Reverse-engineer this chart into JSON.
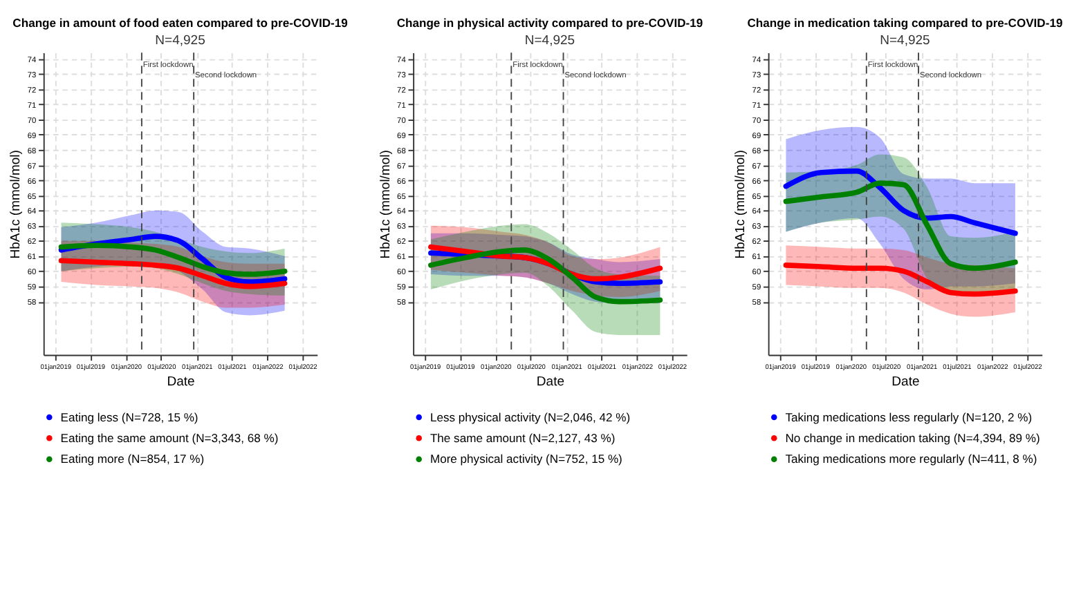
{
  "chart_data": [
    {
      "type": "line",
      "title": "Change in amount of food eaten compared to pre-COVID-19",
      "subtitle": "N=4,925",
      "xlabel": "Date",
      "ylabel": "HbA1c (mmol/mol)",
      "grid": true,
      "legend": "bottom",
      "line_style": "solid",
      "xlim": [
        "2018-11-01",
        "2022-09-15"
      ],
      "ylim": [
        54.5,
        74.4
      ],
      "xticks": [
        {
          "value": "2019-01-01",
          "label": "01jan2019"
        },
        {
          "value": "2019-07-01",
          "label": "01jul2019"
        },
        {
          "value": "2020-01-01",
          "label": "01jan2020"
        },
        {
          "value": "2020-07-01",
          "label": "01jul2020"
        },
        {
          "value": "2021-01-01",
          "label": "01jan2021"
        },
        {
          "value": "2021-07-01",
          "label": "01jul2021"
        },
        {
          "value": "2022-01-01",
          "label": "01jan2022"
        },
        {
          "value": "2022-07-01",
          "label": "01jul2022"
        }
      ],
      "yticks": [
        58,
        59,
        60,
        61,
        62,
        63,
        64,
        65,
        66,
        67,
        68,
        69,
        70,
        71,
        72,
        73,
        74
      ],
      "ref_lines": [
        {
          "axis": "x",
          "value": "2020-03-23",
          "label": "First lockdown",
          "line_style": "dashed"
        },
        {
          "axis": "x",
          "value": "2020-12-17",
          "label": "Second lockdown",
          "line_style": "dashed"
        }
      ],
      "series": [
        {
          "name": "Eating less (N=728, 15 %)",
          "color": "#0000ff",
          "x": [
            "2019-02-01",
            "2019-08-01",
            "2020-02-01",
            "2020-06-01",
            "2020-10-01",
            "2021-02-01",
            "2021-06-01",
            "2021-10-01",
            "2022-04-01"
          ],
          "values": [
            61.4,
            61.8,
            62.1,
            62.3,
            62.0,
            60.8,
            59.6,
            59.3,
            59.5
          ],
          "lower": [
            60.0,
            60.3,
            60.5,
            60.6,
            60.0,
            58.8,
            57.3,
            57.1,
            57.4
          ],
          "upper": [
            62.9,
            63.2,
            63.7,
            64.0,
            63.9,
            62.6,
            61.6,
            61.5,
            61.0
          ]
        },
        {
          "name": "Eating the same amount (N=3,343, 68 %)",
          "color": "#ff0000",
          "x": [
            "2019-02-01",
            "2019-08-01",
            "2020-02-01",
            "2020-06-01",
            "2020-10-01",
            "2021-02-01",
            "2021-06-01",
            "2021-10-01",
            "2022-04-01"
          ],
          "values": [
            60.7,
            60.6,
            60.5,
            60.4,
            60.2,
            59.7,
            59.2,
            59.0,
            59.2
          ],
          "lower": [
            59.3,
            59.1,
            59.0,
            58.9,
            58.6,
            58.0,
            57.6,
            57.6,
            57.8
          ],
          "upper": [
            62.0,
            62.0,
            61.9,
            61.8,
            61.6,
            61.0,
            60.6,
            60.5,
            60.5
          ]
        },
        {
          "name": "Eating more (N=854, 17 %)",
          "color": "#008000",
          "x": [
            "2019-02-01",
            "2019-08-01",
            "2020-02-01",
            "2020-06-01",
            "2020-10-01",
            "2021-02-01",
            "2021-06-01",
            "2021-10-01",
            "2022-04-01"
          ],
          "values": [
            61.6,
            61.7,
            61.6,
            61.4,
            60.9,
            60.3,
            59.9,
            59.8,
            60.0
          ],
          "lower": [
            60.0,
            60.2,
            60.3,
            60.2,
            59.8,
            59.2,
            58.7,
            58.5,
            58.4
          ],
          "upper": [
            63.2,
            63.1,
            62.9,
            62.6,
            62.1,
            61.6,
            61.3,
            61.2,
            61.5
          ]
        }
      ]
    },
    {
      "type": "line",
      "title": "Change in physical activity compared to pre-COVID-19",
      "subtitle": "N=4,925",
      "xlabel": "Date",
      "ylabel": "HbA1c (mmol/mol)",
      "grid": true,
      "legend": "bottom",
      "line_style": "solid",
      "xlim": [
        "2018-11-01",
        "2022-09-15"
      ],
      "ylim": [
        54.5,
        74.4
      ],
      "xticks": [
        {
          "value": "2019-01-01",
          "label": "01jan2019"
        },
        {
          "value": "2019-07-01",
          "label": "01jul2019"
        },
        {
          "value": "2020-01-01",
          "label": "01jan2020"
        },
        {
          "value": "2020-07-01",
          "label": "01jul2020"
        },
        {
          "value": "2021-01-01",
          "label": "01jan2021"
        },
        {
          "value": "2021-07-01",
          "label": "01jul2021"
        },
        {
          "value": "2022-01-01",
          "label": "01jan2022"
        },
        {
          "value": "2022-07-01",
          "label": "01jul2022"
        }
      ],
      "yticks": [
        58,
        59,
        60,
        61,
        62,
        63,
        64,
        65,
        66,
        67,
        68,
        69,
        70,
        71,
        72,
        73,
        74
      ],
      "ref_lines": [
        {
          "axis": "x",
          "value": "2020-03-23",
          "label": "First lockdown",
          "line_style": "dashed"
        },
        {
          "axis": "x",
          "value": "2020-12-17",
          "label": "Second lockdown",
          "line_style": "dashed"
        }
      ],
      "series": [
        {
          "name": "Less physical activity (N=2,046, 42 %)",
          "color": "#0000ff",
          "x": [
            "2019-02-01",
            "2019-08-01",
            "2020-02-01",
            "2020-06-01",
            "2020-10-01",
            "2021-02-01",
            "2021-06-01",
            "2021-10-01",
            "2022-05-01"
          ],
          "values": [
            61.2,
            61.1,
            61.0,
            60.9,
            60.5,
            59.8,
            59.3,
            59.2,
            59.3
          ],
          "lower": [
            59.8,
            59.7,
            59.7,
            59.6,
            59.2,
            58.5,
            58.0,
            57.9,
            57.9
          ],
          "upper": [
            62.5,
            62.5,
            62.4,
            62.3,
            61.9,
            61.1,
            60.8,
            60.6,
            60.8
          ]
        },
        {
          "name": "The same amount (N=2,127, 43 %)",
          "color": "#ff0000",
          "x": [
            "2019-02-01",
            "2019-08-01",
            "2020-02-01",
            "2020-06-01",
            "2020-10-01",
            "2021-02-01",
            "2021-06-01",
            "2021-10-01",
            "2022-05-01"
          ],
          "values": [
            61.6,
            61.3,
            61.0,
            60.9,
            60.5,
            59.8,
            59.5,
            59.6,
            60.2
          ],
          "lower": [
            60.1,
            59.9,
            59.7,
            59.6,
            59.2,
            58.7,
            58.4,
            58.3,
            58.7
          ],
          "upper": [
            63.0,
            62.9,
            62.6,
            62.4,
            61.9,
            61.0,
            60.8,
            60.9,
            61.6
          ]
        },
        {
          "name": "More physical activity (N=752, 15 %)",
          "color": "#008000",
          "x": [
            "2019-02-01",
            "2019-08-01",
            "2020-02-01",
            "2020-06-01",
            "2020-10-01",
            "2021-02-01",
            "2021-06-01",
            "2021-10-01",
            "2022-05-01"
          ],
          "values": [
            60.4,
            60.9,
            61.3,
            61.4,
            60.8,
            59.6,
            58.3,
            58.0,
            58.1
          ],
          "lower": [
            58.8,
            59.4,
            59.8,
            59.9,
            59.0,
            57.4,
            56.0,
            55.8,
            55.8
          ],
          "upper": [
            62.1,
            62.6,
            63.0,
            63.1,
            62.5,
            61.4,
            60.2,
            59.8,
            59.7
          ]
        }
      ]
    },
    {
      "type": "line",
      "title": "Change in medication taking compared to pre-COVID-19",
      "subtitle": "N=4,925",
      "xlabel": "Date",
      "ylabel": "HbA1c (mmol/mol)",
      "grid": true,
      "legend": "bottom",
      "line_style": "solid",
      "xlim": [
        "2018-11-01",
        "2022-09-15"
      ],
      "ylim": [
        54.5,
        74.4
      ],
      "xticks": [
        {
          "value": "2019-01-01",
          "label": "01jan2019"
        },
        {
          "value": "2019-07-01",
          "label": "01jul2019"
        },
        {
          "value": "2020-01-01",
          "label": "01jan2020"
        },
        {
          "value": "2020-07-01",
          "label": "01jul2020"
        },
        {
          "value": "2021-01-01",
          "label": "01jan2021"
        },
        {
          "value": "2021-07-01",
          "label": "01jul2021"
        },
        {
          "value": "2022-01-01",
          "label": "01jan2022"
        },
        {
          "value": "2022-07-01",
          "label": "01jul2022"
        }
      ],
      "yticks": [
        58,
        59,
        60,
        61,
        62,
        63,
        64,
        65,
        66,
        67,
        68,
        69,
        70,
        71,
        72,
        73,
        74
      ],
      "ref_lines": [
        {
          "axis": "x",
          "value": "2020-03-23",
          "label": "First lockdown",
          "line_style": "dashed"
        },
        {
          "axis": "x",
          "value": "2020-12-17",
          "label": "Second lockdown",
          "line_style": "dashed"
        }
      ],
      "series": [
        {
          "name": "Taking medications less regularly (N=120, 2 %)",
          "color": "#0000ff",
          "x": [
            "2019-02-01",
            "2019-08-01",
            "2020-02-01",
            "2020-06-01",
            "2020-10-01",
            "2021-02-01",
            "2021-06-01",
            "2021-10-01",
            "2022-05-01"
          ],
          "values": [
            65.6,
            66.5,
            66.6,
            65.5,
            64.0,
            63.5,
            63.6,
            63.2,
            62.5
          ],
          "lower": [
            62.6,
            63.2,
            63.5,
            61.8,
            59.5,
            58.8,
            59.0,
            59.0,
            59.2
          ],
          "upper": [
            68.7,
            69.3,
            69.5,
            68.8,
            66.4,
            66.1,
            66.1,
            65.8,
            65.8
          ]
        },
        {
          "name": "No change in medication taking (N=4,394, 89 %)",
          "color": "#ff0000",
          "x": [
            "2019-02-01",
            "2019-08-01",
            "2020-02-01",
            "2020-06-01",
            "2020-10-01",
            "2021-02-01",
            "2021-06-01",
            "2021-10-01",
            "2022-05-01"
          ],
          "values": [
            60.4,
            60.3,
            60.2,
            60.2,
            60.0,
            59.3,
            58.6,
            58.5,
            58.7
          ],
          "lower": [
            59.1,
            59.0,
            58.9,
            58.9,
            58.6,
            57.8,
            57.2,
            57.0,
            57.3
          ],
          "upper": [
            61.7,
            61.6,
            61.5,
            61.5,
            61.4,
            60.9,
            60.5,
            60.4,
            60.2
          ]
        },
        {
          "name": "Taking medications more regularly (N=411, 8 %)",
          "color": "#008000",
          "x": [
            "2019-02-01",
            "2019-08-01",
            "2020-02-01",
            "2020-06-01",
            "2020-10-01",
            "2021-02-01",
            "2021-06-01",
            "2021-10-01",
            "2022-05-01"
          ],
          "values": [
            64.6,
            64.9,
            65.2,
            65.8,
            65.7,
            63.0,
            60.5,
            60.2,
            60.6
          ],
          "lower": [
            62.6,
            63.2,
            63.4,
            63.6,
            62.8,
            59.5,
            58.5,
            58.5,
            58.7
          ],
          "upper": [
            66.5,
            66.6,
            67.0,
            67.7,
            67.5,
            65.5,
            62.3,
            62.2,
            62.6
          ]
        }
      ]
    }
  ]
}
